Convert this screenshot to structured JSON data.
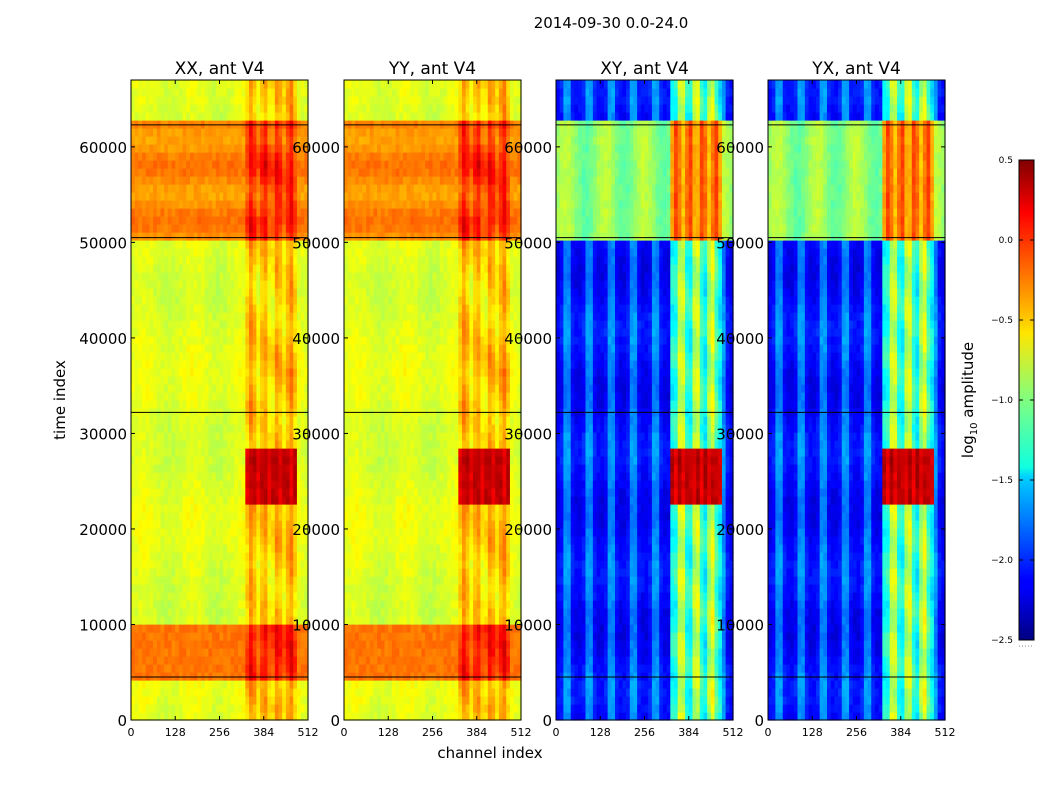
{
  "chart_data": {
    "type": "heatmap",
    "suptitle": "2014-09-30 0.0-24.0",
    "xlabel": "channel index",
    "ylabel": "time index",
    "xlim": [
      0,
      512
    ],
    "ylim": [
      0,
      67000
    ],
    "xticks": [
      0,
      128,
      256,
      384,
      512
    ],
    "xtick_labels": [
      "0",
      "128",
      "256",
      "384",
      "512"
    ],
    "yticks": [
      0,
      10000,
      20000,
      30000,
      40000,
      50000,
      60000
    ],
    "ytick_labels": [
      "0",
      "10000",
      "20000",
      "30000",
      "40000",
      "50000",
      "60000"
    ],
    "panels": [
      {
        "title": "XX, ant V4",
        "kind": "auto"
      },
      {
        "title": "YY, ant V4",
        "kind": "auto"
      },
      {
        "title": "XY, ant V4",
        "kind": "cross"
      },
      {
        "title": "YX, ant V4",
        "kind": "cross"
      }
    ],
    "colorbar": {
      "label_prefix": "log",
      "label_sub": "10",
      "label_suffix": " amplitude",
      "range": [
        -2.5,
        0.5
      ],
      "ticks": [
        0.5,
        0.0,
        -0.5,
        -1.0,
        -1.5,
        -2.0,
        -2.5
      ],
      "tick_labels": [
        "0.5",
        "0.0",
        "−0.5",
        "−1.0",
        "−1.5",
        "−2.0",
        "−2.5"
      ],
      "colormap": "jet"
    },
    "features": {
      "rfi_channels_range": [
        330,
        485
      ],
      "horizontal_lines_time": [
        4500,
        32200,
        50500,
        62300
      ],
      "bright_band_time": [
        4500,
        10000
      ],
      "upper_band_time": [
        50500,
        63000
      ],
      "burst_time": [
        22500,
        28500
      ]
    }
  },
  "colors": {
    "frame": "#000000",
    "background": "#ffffff"
  }
}
